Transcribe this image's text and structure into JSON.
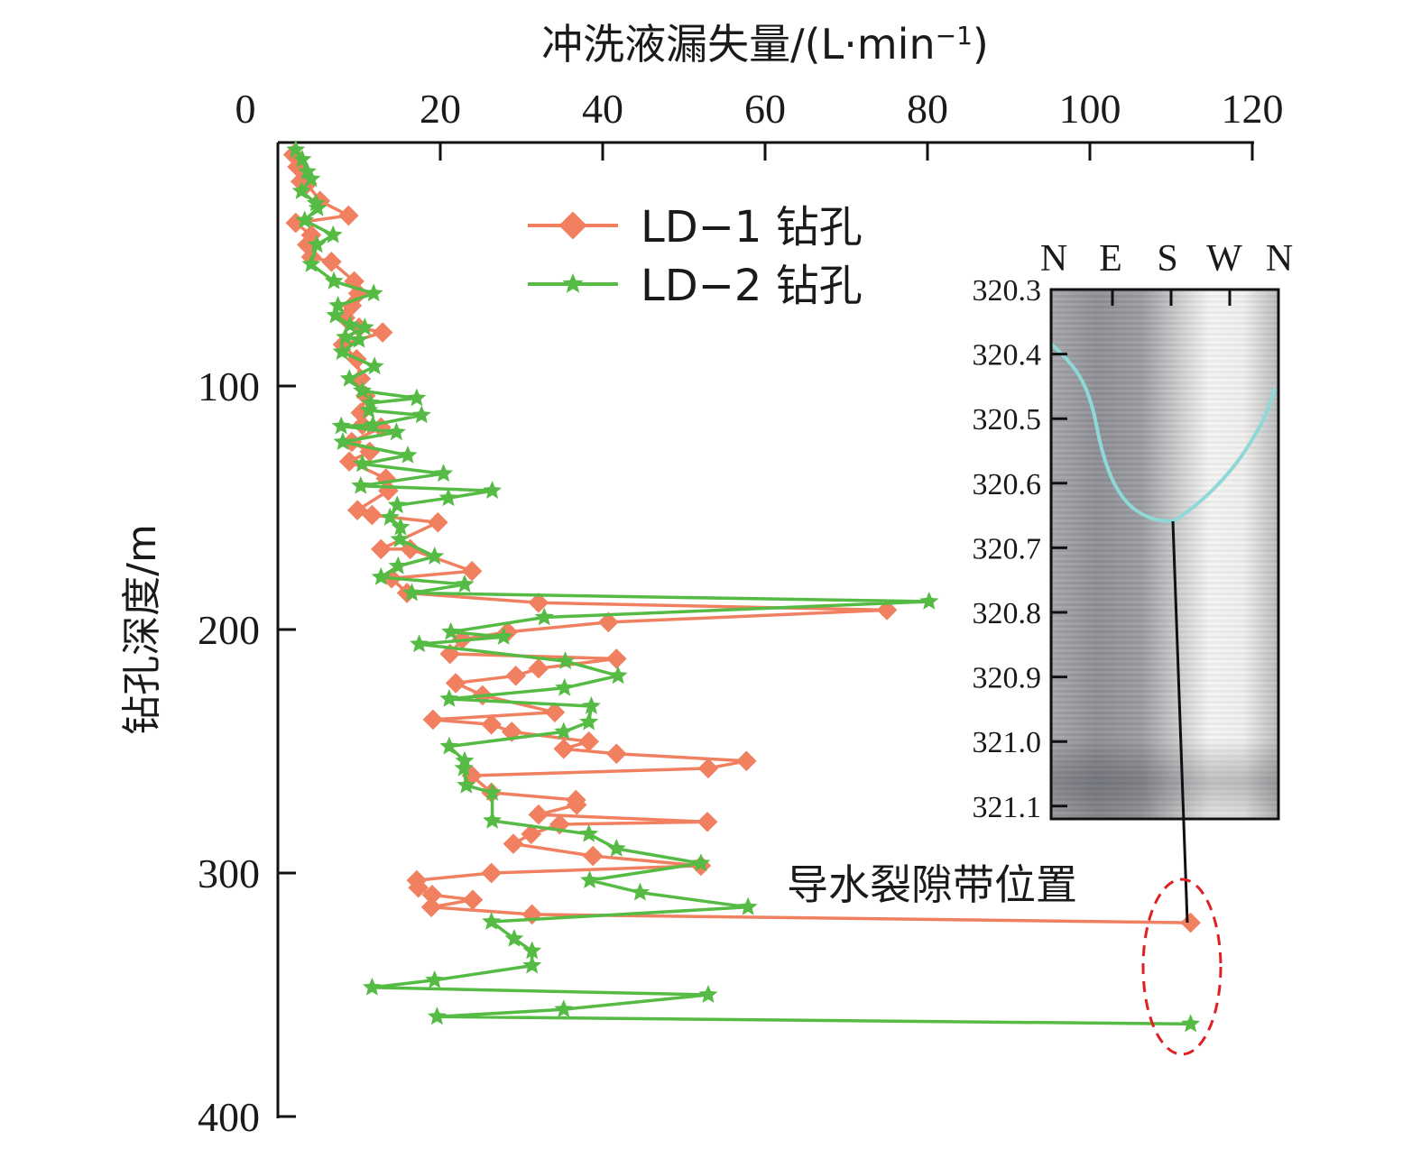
{
  "chart_data": {
    "type": "line",
    "xlabel": "冲洗液漏失量/(L·min",
    "xlabel_sup": "−1",
    "xlabel_end": ")",
    "ylabel": "钻孔深度/m",
    "x_axis_position": "top",
    "y_axis_inverted": true,
    "xlim": [
      0,
      120
    ],
    "ylim": [
      0,
      400
    ],
    "xticks": [
      "0",
      "20",
      "40",
      "60",
      "80",
      "100",
      "120"
    ],
    "yticks": [
      "100",
      "200",
      "300",
      "400"
    ],
    "grid": false,
    "legend_placement": "top-center",
    "series": [
      {
        "name": "LD−1 钻孔",
        "color": "#f08060",
        "marker": "diamond",
        "points": [
          [
            1.9,
            5
          ],
          [
            2.4,
            10
          ],
          [
            2.8,
            16
          ],
          [
            3.6,
            17
          ],
          [
            5.2,
            24
          ],
          [
            8.7,
            30
          ],
          [
            2.2,
            33
          ],
          [
            4.1,
            38
          ],
          [
            3.6,
            42
          ],
          [
            4.1,
            47
          ],
          [
            6.6,
            49
          ],
          [
            9.4,
            57
          ],
          [
            9.9,
            62
          ],
          [
            9.1,
            67
          ],
          [
            8.3,
            72
          ],
          [
            10,
            76
          ],
          [
            12.9,
            78
          ],
          [
            8,
            83
          ],
          [
            9.7,
            89
          ],
          [
            10.2,
            97
          ],
          [
            10.8,
            104
          ],
          [
            10.2,
            111
          ],
          [
            10.4,
            116
          ],
          [
            12.7,
            117
          ],
          [
            9.1,
            123
          ],
          [
            11.3,
            127
          ],
          [
            8.8,
            131
          ],
          [
            13.3,
            138
          ],
          [
            13.6,
            143
          ],
          [
            9.8,
            151
          ],
          [
            11.6,
            153
          ],
          [
            19.7,
            156
          ],
          [
            12.7,
            167
          ],
          [
            16.3,
            167
          ],
          [
            23.9,
            176
          ],
          [
            14,
            179
          ],
          [
            15.9,
            185
          ],
          [
            32.1,
            189
          ],
          [
            75,
            192
          ],
          [
            40.7,
            197
          ],
          [
            28.3,
            201
          ],
          [
            22.7,
            204
          ],
          [
            21.2,
            210
          ],
          [
            41.7,
            212
          ],
          [
            32.1,
            216
          ],
          [
            29.3,
            219
          ],
          [
            21.9,
            222
          ],
          [
            25.2,
            227
          ],
          [
            34.1,
            234
          ],
          [
            19.1,
            237
          ],
          [
            26.3,
            239
          ],
          [
            28.8,
            242
          ],
          [
            38.3,
            246
          ],
          [
            35.2,
            249
          ],
          [
            41.7,
            251
          ],
          [
            57.7,
            254
          ],
          [
            53,
            257
          ],
          [
            23.9,
            260
          ],
          [
            26.3,
            267
          ],
          [
            36.7,
            270
          ],
          [
            36.8,
            272
          ],
          [
            32.1,
            276
          ],
          [
            52.9,
            279
          ],
          [
            34.7,
            280
          ],
          [
            31.2,
            284
          ],
          [
            29,
            288
          ],
          [
            38.8,
            293
          ],
          [
            52.1,
            297
          ],
          [
            26.3,
            300
          ],
          [
            17.1,
            303
          ],
          [
            17.3,
            306
          ],
          [
            19,
            309
          ],
          [
            24,
            311
          ],
          [
            18.9,
            314
          ],
          [
            31.3,
            317
          ],
          [
            112.4,
            320.4
          ]
        ]
      },
      {
        "name": "LD−2 钻孔",
        "color": "#55bb44",
        "marker": "star",
        "points": [
          [
            2.2,
            3
          ],
          [
            3,
            7
          ],
          [
            3.6,
            12
          ],
          [
            4.1,
            15
          ],
          [
            2.9,
            20
          ],
          [
            4.7,
            25
          ],
          [
            4.9,
            27
          ],
          [
            3.3,
            32
          ],
          [
            6.8,
            38
          ],
          [
            4.8,
            42
          ],
          [
            4.1,
            50
          ],
          [
            6.9,
            57
          ],
          [
            11.8,
            62
          ],
          [
            7.4,
            67
          ],
          [
            7.1,
            71
          ],
          [
            8.9,
            75
          ],
          [
            10.7,
            76
          ],
          [
            8.3,
            80
          ],
          [
            10,
            81
          ],
          [
            7.9,
            86
          ],
          [
            11.9,
            92
          ],
          [
            8.8,
            97
          ],
          [
            10.4,
            102
          ],
          [
            17.1,
            105
          ],
          [
            11.4,
            107
          ],
          [
            11.2,
            110
          ],
          [
            17.7,
            112
          ],
          [
            11.7,
            116
          ],
          [
            7.8,
            116.5
          ],
          [
            14.6,
            119
          ],
          [
            8,
            123
          ],
          [
            16,
            128.5
          ],
          [
            10.4,
            132
          ],
          [
            20.4,
            136
          ],
          [
            10.2,
            141
          ],
          [
            26.4,
            143
          ],
          [
            21,
            146
          ],
          [
            14.7,
            149
          ],
          [
            13.8,
            154
          ],
          [
            15.1,
            158
          ],
          [
            15,
            163
          ],
          [
            19.3,
            170
          ],
          [
            14.8,
            174
          ],
          [
            12.7,
            178.5
          ],
          [
            23,
            181.5
          ],
          [
            16.5,
            185
          ],
          [
            80.2,
            188.5
          ],
          [
            32.8,
            195
          ],
          [
            21.3,
            201
          ],
          [
            27.8,
            203
          ],
          [
            17.4,
            206
          ],
          [
            35.4,
            213
          ],
          [
            41.9,
            219
          ],
          [
            35.3,
            224
          ],
          [
            21.1,
            228.5
          ],
          [
            38.6,
            231.5
          ],
          [
            38.3,
            238
          ],
          [
            35.2,
            242
          ],
          [
            21.1,
            248
          ],
          [
            23,
            254
          ],
          [
            22.9,
            257
          ],
          [
            23.2,
            264
          ],
          [
            26.4,
            267
          ],
          [
            26.4,
            278.5
          ],
          [
            38.3,
            284
          ],
          [
            41.7,
            290
          ],
          [
            52.1,
            296
          ],
          [
            38.4,
            303
          ],
          [
            44.6,
            308
          ],
          [
            57.9,
            314
          ],
          [
            26.3,
            320
          ],
          [
            29.1,
            327
          ],
          [
            31.3,
            332
          ],
          [
            31.3,
            338
          ],
          [
            19.3,
            344
          ],
          [
            11.6,
            347
          ],
          [
            53,
            350
          ],
          [
            35.2,
            356
          ],
          [
            19.6,
            359
          ],
          [
            112.4,
            362
          ]
        ]
      }
    ],
    "annotation": "导水裂隙带位置",
    "annotation_color": "#e02020",
    "inset": {
      "compass": [
        "N",
        "E",
        "S",
        "W",
        "N"
      ],
      "depth_ticks": [
        "320.3",
        "320.4",
        "320.5",
        "320.6",
        "320.7",
        "320.8",
        "320.9",
        "321.0",
        "321.1"
      ],
      "fracture_trace_color": "#8fd8d8"
    }
  }
}
